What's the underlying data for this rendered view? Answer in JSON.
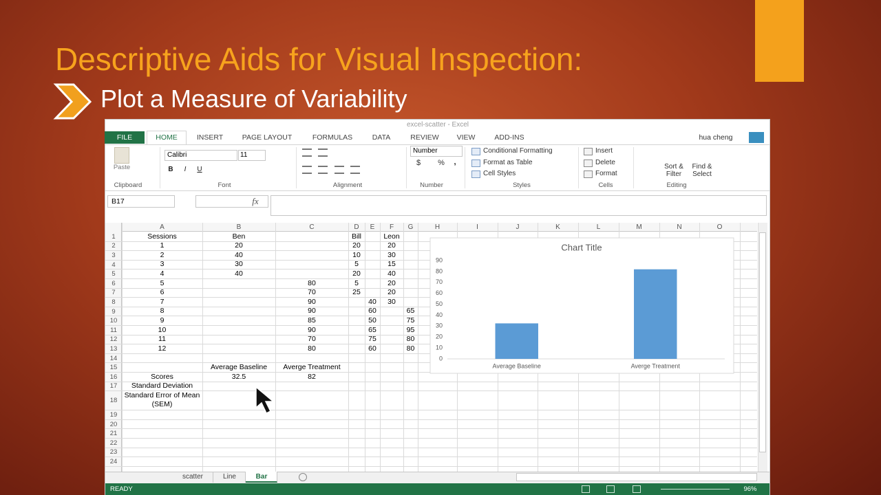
{
  "slide": {
    "title": "Descriptive Aids for Visual Inspection:",
    "subtitle": "Plot a Measure of Variability"
  },
  "excel": {
    "window_title": "excel-scatter - Excel",
    "tabs": [
      "FILE",
      "HOME",
      "INSERT",
      "PAGE LAYOUT",
      "FORMULAS",
      "DATA",
      "REVIEW",
      "VIEW",
      "ADD-INS"
    ],
    "active_tab": 1,
    "user": "hua cheng",
    "ribbon": {
      "clipboard": {
        "label": "Clipboard",
        "paste": "Paste"
      },
      "font": {
        "label": "Font",
        "name": "Calibri",
        "size": "11",
        "bold": "B",
        "italic": "I",
        "underline": "U"
      },
      "alignment": {
        "label": "Alignment"
      },
      "number": {
        "label": "Number",
        "format": "Number",
        "currency": "$",
        "percent": "%",
        "comma": ","
      },
      "styles": {
        "label": "Styles",
        "items": [
          "Conditional Formatting",
          "Format as Table",
          "Cell Styles"
        ]
      },
      "cells": {
        "label": "Cells",
        "items": [
          "Insert",
          "Delete",
          "Format"
        ]
      },
      "editing": {
        "label": "Editing",
        "items": [
          "Sort & Filter",
          "Find & Select"
        ]
      }
    },
    "name_box": "B17",
    "fx": "fx",
    "columns": [
      "A",
      "B",
      "C",
      "D",
      "E",
      "F",
      "G",
      "H",
      "I",
      "J",
      "K",
      "L",
      "M",
      "N",
      "O"
    ],
    "rows": [
      {
        "label": 1,
        "cells": [
          "Sessions",
          "Ben",
          null,
          "Bill",
          null,
          "Leon"
        ]
      },
      {
        "label": 2,
        "cells": [
          1,
          20,
          null,
          20,
          null,
          20
        ]
      },
      {
        "label": 3,
        "cells": [
          2,
          40,
          null,
          10,
          null,
          30
        ]
      },
      {
        "label": 4,
        "cells": [
          3,
          30,
          null,
          5,
          null,
          15
        ]
      },
      {
        "label": 5,
        "cells": [
          4,
          40,
          null,
          20,
          null,
          40
        ]
      },
      {
        "label": 6,
        "cells": [
          5,
          null,
          80,
          5,
          null,
          20
        ]
      },
      {
        "label": 7,
        "cells": [
          6,
          null,
          70,
          25,
          null,
          20
        ]
      },
      {
        "label": 8,
        "cells": [
          7,
          null,
          90,
          null,
          40,
          30
        ]
      },
      {
        "label": 9,
        "cells": [
          8,
          null,
          90,
          null,
          60,
          null,
          65
        ]
      },
      {
        "label": 10,
        "cells": [
          9,
          null,
          85,
          null,
          50,
          null,
          75
        ]
      },
      {
        "label": 11,
        "cells": [
          10,
          null,
          90,
          null,
          65,
          null,
          95
        ]
      },
      {
        "label": 12,
        "cells": [
          11,
          null,
          70,
          null,
          75,
          null,
          80
        ]
      },
      {
        "label": 13,
        "cells": [
          12,
          null,
          80,
          null,
          60,
          null,
          80
        ]
      },
      {
        "label": 14,
        "cells": []
      },
      {
        "label": 15,
        "cells": [
          null,
          "Average Baseline",
          "Averge Treatment"
        ]
      },
      {
        "label": 16,
        "cells": [
          "Scores",
          32.5,
          82
        ]
      },
      {
        "label": 17,
        "cells": [
          "Standard Deviation"
        ]
      },
      {
        "label": 18,
        "cells": [
          "Standard Error of Mean (SEM)"
        ]
      },
      {
        "label": 19,
        "cells": []
      },
      {
        "label": 20,
        "cells": []
      },
      {
        "label": 21,
        "cells": []
      },
      {
        "label": 22,
        "cells": []
      },
      {
        "label": 23,
        "cells": []
      },
      {
        "label": 24,
        "cells": []
      }
    ],
    "sheet_tabs": [
      "scatter",
      "Line",
      "Bar"
    ],
    "active_sheet": 2,
    "status": "READY",
    "zoom": "96%"
  },
  "chart_data": {
    "type": "bar",
    "title": "Chart Title",
    "categories": [
      "Average Baseline",
      "Averge Treatment"
    ],
    "values": [
      32.5,
      82
    ],
    "color": "#5b9bd5",
    "ylim": [
      0,
      90
    ],
    "yticks": [
      0,
      10,
      20,
      30,
      40,
      50,
      60,
      70,
      80,
      90
    ],
    "grid": false
  }
}
